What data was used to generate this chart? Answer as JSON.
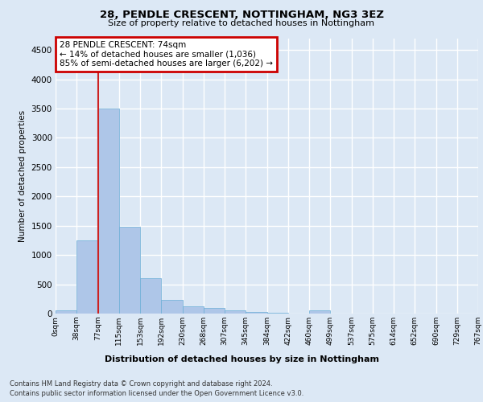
{
  "title1": "28, PENDLE CRESCENT, NOTTINGHAM, NG3 3EZ",
  "title2": "Size of property relative to detached houses in Nottingham",
  "xlabel": "Distribution of detached houses by size in Nottingham",
  "ylabel": "Number of detached properties",
  "bin_labels": [
    "0sqm",
    "38sqm",
    "77sqm",
    "115sqm",
    "153sqm",
    "192sqm",
    "230sqm",
    "268sqm",
    "307sqm",
    "345sqm",
    "384sqm",
    "422sqm",
    "460sqm",
    "499sqm",
    "537sqm",
    "575sqm",
    "614sqm",
    "652sqm",
    "690sqm",
    "729sqm",
    "767sqm"
  ],
  "bar_heights": [
    50,
    1250,
    3500,
    1480,
    600,
    240,
    130,
    90,
    50,
    30,
    10,
    5,
    60,
    5,
    0,
    0,
    0,
    0,
    0,
    0
  ],
  "bar_color": "#aec6e8",
  "bar_edge_color": "#6baed6",
  "highlight_color": "#cc2222",
  "annotation_text": "28 PENDLE CRESCENT: 74sqm\n← 14% of detached houses are smaller (1,036)\n85% of semi-detached houses are larger (6,202) →",
  "annotation_box_color": "#ffffff",
  "annotation_box_edge_color": "#cc0000",
  "ylim": [
    0,
    4700
  ],
  "yticks": [
    0,
    500,
    1000,
    1500,
    2000,
    2500,
    3000,
    3500,
    4000,
    4500
  ],
  "footer1": "Contains HM Land Registry data © Crown copyright and database right 2024.",
  "footer2": "Contains public sector information licensed under the Open Government Licence v3.0.",
  "bg_color": "#dce8f5",
  "plot_bg_color": "#dce8f5",
  "grid_color": "#ffffff"
}
